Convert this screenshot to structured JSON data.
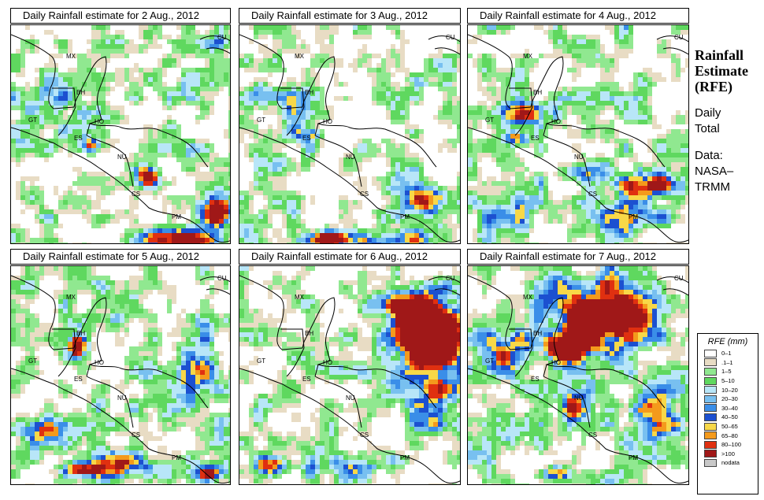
{
  "panels": [
    {
      "title": "Daily Rainfall estimate for  2 Aug., 2012",
      "date": "2 Aug., 2012"
    },
    {
      "title": "Daily Rainfall estimate for  3 Aug., 2012",
      "date": "3 Aug., 2012"
    },
    {
      "title": "Daily Rainfall estimate for  4 Aug., 2012",
      "date": "4 Aug., 2012"
    },
    {
      "title": "Daily Rainfall estimate for  5 Aug., 2012",
      "date": "5 Aug., 2012"
    },
    {
      "title": "Daily Rainfall estimate for  6 Aug., 2012",
      "date": "6 Aug., 2012"
    },
    {
      "title": "Daily Rainfall estimate for  7 Aug., 2012",
      "date": "7 Aug., 2012"
    }
  ],
  "map_labels": [
    "MX",
    "BH",
    "GT",
    "HO",
    "ES",
    "NU",
    "CS",
    "PM",
    "CU"
  ],
  "sidebar": {
    "title_line1": "Rainfall",
    "title_line2": "Estimate",
    "title_line3": "(RFE)",
    "period_line1": "Daily",
    "period_line2": "Total",
    "source_line1": "Data:",
    "source_line2": "NASA–",
    "source_line3": "TRMM"
  },
  "legend": {
    "title": "RFE (mm)",
    "items": [
      {
        "label": "0–1",
        "color": "#ffffff"
      },
      {
        "label": ".1–1",
        "color": "#e8dcc4"
      },
      {
        "label": "1–5",
        "color": "#90e890"
      },
      {
        "label": "5–10",
        "color": "#5fd85f"
      },
      {
        "label": "10–20",
        "color": "#b8e6f8"
      },
      {
        "label": "20–30",
        "color": "#78c0f0"
      },
      {
        "label": "30–40",
        "color": "#3a8ee8"
      },
      {
        "label": "40–50",
        "color": "#1c50d0"
      },
      {
        "label": "50–65",
        "color": "#f8d848"
      },
      {
        "label": "65–80",
        "color": "#f49a1c"
      },
      {
        "label": "80–100",
        "color": "#e03010"
      },
      {
        "label": ">100",
        "color": "#a01818"
      },
      {
        "label": "nodata",
        "color": "#c8c8c8"
      }
    ]
  }
}
